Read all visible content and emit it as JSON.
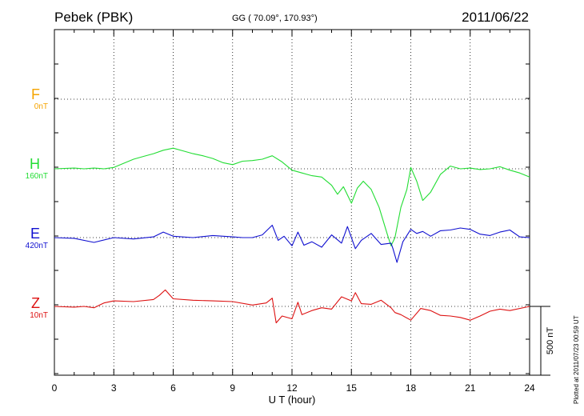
{
  "header": {
    "station": "Pebek (PBK)",
    "coords": "GG ( 70.09°, 170.93°)",
    "date": "2011/06/22",
    "plotted": "Plotted at 2011/07/23 00:59 UT"
  },
  "chart_data": {
    "type": "line",
    "xlabel": "U T (hour)",
    "xlim": [
      0,
      24
    ],
    "xticks": [
      0,
      3,
      6,
      9,
      12,
      15,
      18,
      21,
      24
    ],
    "grid": true,
    "scale_bar": "500 nT",
    "series": [
      {
        "name": "F",
        "offset_label": "0nT",
        "color": "#f5a400",
        "x": [],
        "y": []
      },
      {
        "name": "H",
        "offset_label": "160nT",
        "color": "#22dd33",
        "x": [
          0,
          1,
          1.5,
          2,
          2.5,
          3,
          3.5,
          4,
          4.5,
          5,
          5.5,
          6,
          6.5,
          7,
          7.5,
          8,
          8.5,
          9,
          9.5,
          10,
          10.5,
          11,
          11.5,
          12,
          12.5,
          13,
          13.5,
          14,
          14.3,
          14.6,
          15,
          15.3,
          15.6,
          16,
          16.4,
          16.8,
          17,
          17.2,
          17.5,
          17.8,
          18,
          18.3,
          18.6,
          19,
          19.5,
          20,
          20.5,
          21,
          21.5,
          22,
          22.5,
          23,
          23.5,
          24
        ],
        "y": [
          0,
          5,
          0,
          5,
          0,
          10,
          40,
          70,
          90,
          110,
          135,
          150,
          130,
          110,
          95,
          75,
          45,
          30,
          55,
          60,
          70,
          95,
          50,
          -10,
          -30,
          -50,
          -60,
          -120,
          -185,
          -130,
          -250,
          -140,
          -90,
          -150,
          -280,
          -470,
          -560,
          -500,
          -280,
          -150,
          10,
          -90,
          -230,
          -170,
          -40,
          20,
          0,
          5,
          -5,
          0,
          15,
          -10,
          -30,
          -60
        ]
      },
      {
        "name": "E",
        "offset_label": "420nT",
        "color": "#1010d0",
        "x": [
          0,
          1,
          2,
          3,
          4,
          5,
          5.5,
          6,
          7,
          8,
          9,
          9.5,
          10,
          10.5,
          11,
          11.3,
          11.6,
          12,
          12.3,
          12.6,
          13,
          13.5,
          14,
          14.5,
          14.8,
          15.2,
          15.5,
          16,
          16.5,
          17,
          17.1,
          17.3,
          17.6,
          18,
          18.3,
          18.6,
          19,
          19.5,
          20,
          20.5,
          21,
          21.5,
          22,
          22.5,
          23,
          23.5,
          24
        ],
        "y": [
          0,
          -5,
          -35,
          0,
          -10,
          5,
          40,
          10,
          0,
          15,
          5,
          0,
          0,
          20,
          90,
          -20,
          10,
          -60,
          40,
          -55,
          -30,
          -70,
          20,
          -40,
          80,
          -80,
          -20,
          30,
          -50,
          -40,
          -80,
          -180,
          -30,
          60,
          30,
          45,
          10,
          50,
          55,
          70,
          60,
          25,
          15,
          40,
          55,
          5,
          0
        ]
      },
      {
        "name": "Z",
        "offset_label": "10nT",
        "color": "#dd1111",
        "x": [
          0,
          1,
          1.5,
          2,
          2.5,
          3,
          4,
          5,
          5.3,
          5.6,
          6,
          7,
          8,
          9,
          10,
          10.7,
          11,
          11.2,
          11.5,
          12,
          12.3,
          12.5,
          13,
          13.5,
          14,
          14.5,
          15,
          15.2,
          15.5,
          16,
          16.5,
          17,
          17.2,
          17.5,
          18,
          18.5,
          19,
          19.5,
          20,
          20.5,
          21,
          21.5,
          22,
          22.5,
          23,
          24
        ],
        "y": [
          0,
          -5,
          0,
          -10,
          25,
          40,
          35,
          50,
          80,
          120,
          55,
          45,
          40,
          35,
          10,
          25,
          60,
          -120,
          -70,
          -90,
          30,
          -60,
          -30,
          -10,
          -20,
          70,
          40,
          100,
          20,
          15,
          45,
          -10,
          -45,
          -60,
          -100,
          -15,
          -30,
          -65,
          -70,
          -80,
          -100,
          -70,
          -35,
          -20,
          -30,
          0
        ]
      }
    ]
  }
}
